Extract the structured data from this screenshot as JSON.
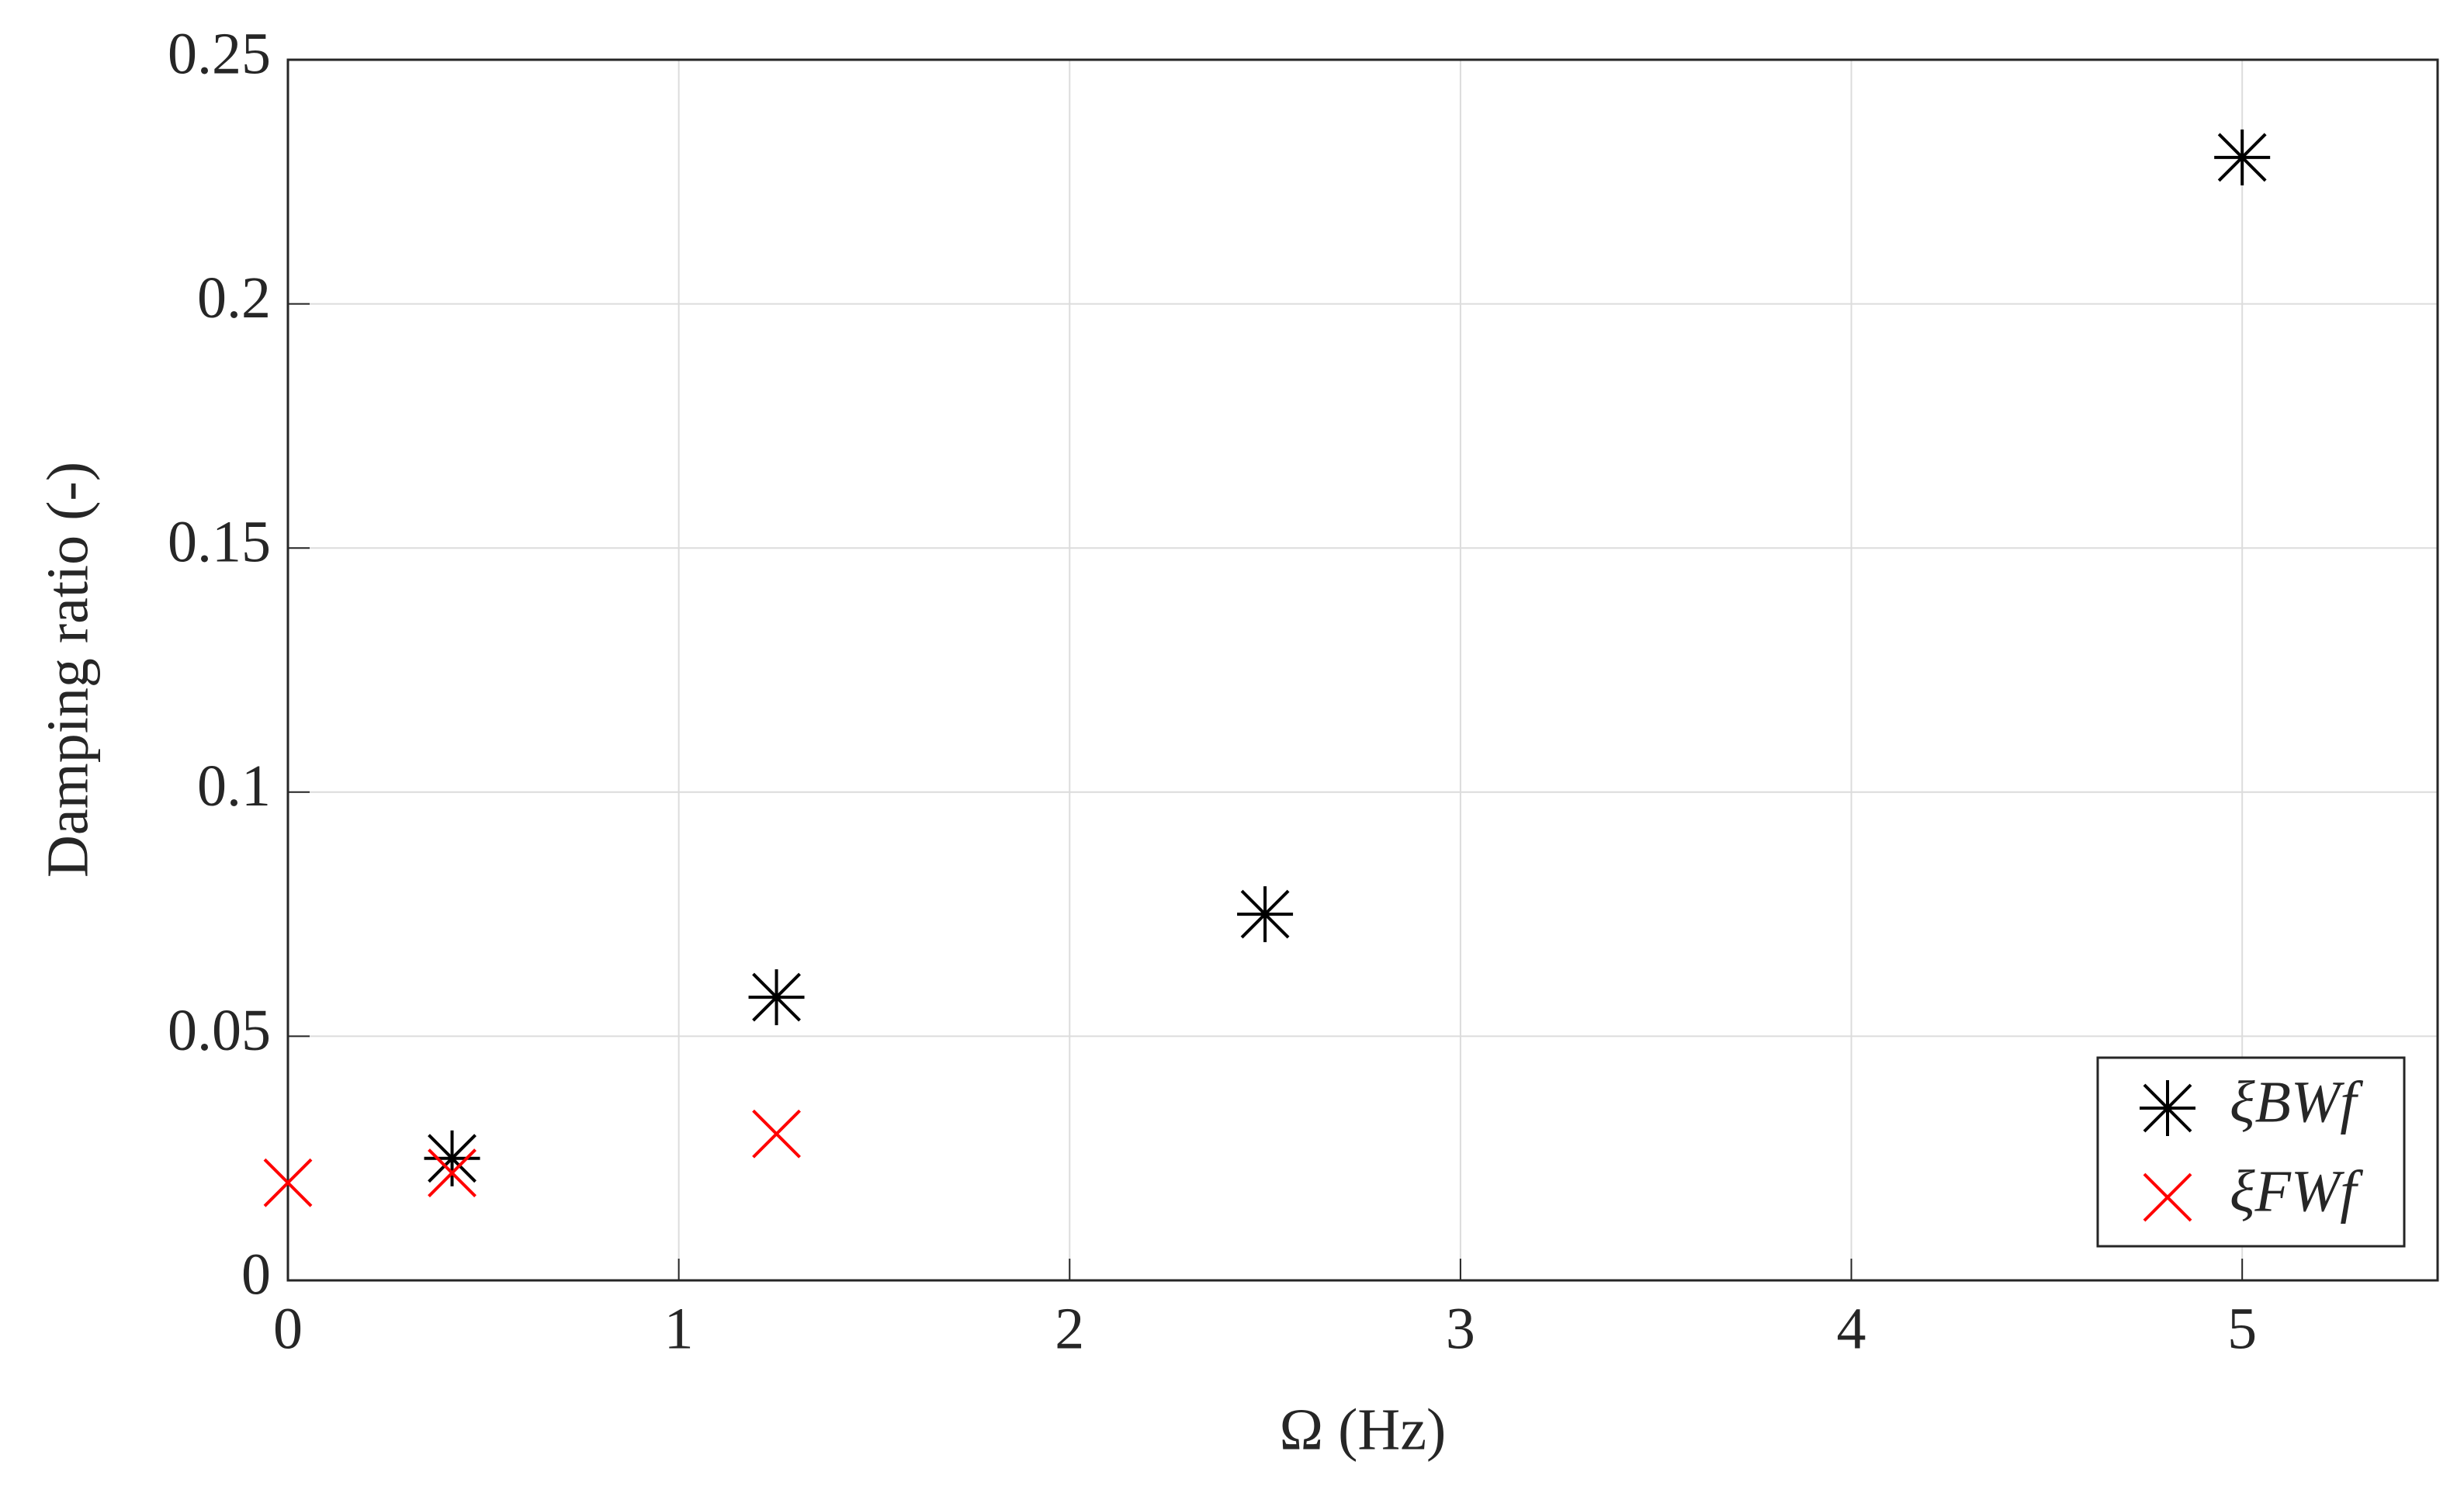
{
  "chart_data": {
    "type": "scatter",
    "xlabel": "Ω (Hz)",
    "ylabel": "Damping ratio (-)",
    "series": [
      {
        "name": "ξBWf",
        "color": "#000000",
        "marker": "asterisk",
        "x": [
          0.42,
          1.25,
          2.5,
          5
        ],
        "values": [
          0.025,
          0.058,
          0.075,
          0.23
        ]
      },
      {
        "name": "ξFWf",
        "color": "#ff0000",
        "marker": "x",
        "x": [
          0,
          0.42,
          1.25
        ],
        "values": [
          0.02,
          0.022,
          0.03
        ]
      }
    ],
    "xlim": [
      0,
      5.5
    ],
    "xticks": [
      0,
      1,
      2,
      3,
      4,
      5
    ],
    "ylim": [
      0,
      0.25
    ],
    "yticks": [
      0,
      0.05,
      0.1,
      0.15,
      0.2,
      0.25
    ],
    "grid": true,
    "legend": "lower right"
  }
}
